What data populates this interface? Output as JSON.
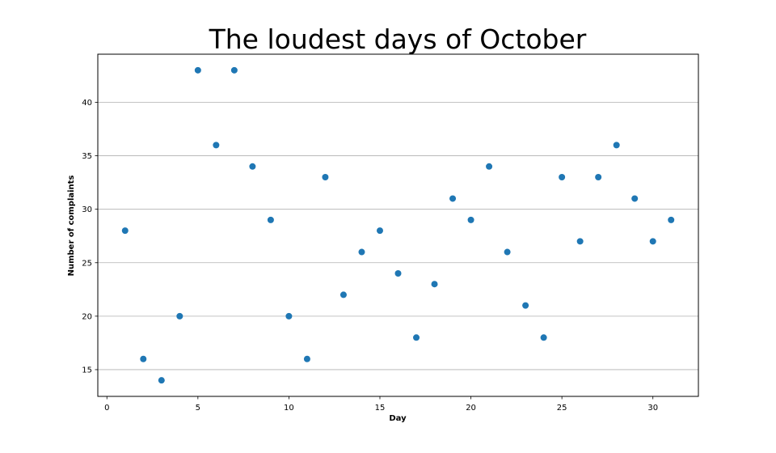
{
  "chart_data": {
    "type": "scatter",
    "title": "The loudest days of October",
    "xlabel": "Day",
    "ylabel": "Number of complaints",
    "x": [
      1,
      2,
      3,
      4,
      5,
      6,
      7,
      8,
      9,
      10,
      11,
      12,
      13,
      14,
      15,
      16,
      17,
      18,
      19,
      20,
      21,
      22,
      23,
      24,
      25,
      26,
      27,
      28,
      29,
      30,
      31
    ],
    "y": [
      28,
      16,
      14,
      20,
      43,
      36,
      43,
      34,
      29,
      20,
      16,
      33,
      22,
      26,
      28,
      24,
      18,
      23,
      31,
      29,
      34,
      26,
      21,
      18,
      33,
      27,
      33,
      36,
      31,
      27,
      29
    ],
    "xlim": [
      -0.5,
      32.5
    ],
    "ylim": [
      12.5,
      44.5
    ],
    "xticks": [
      0,
      5,
      10,
      15,
      20,
      25,
      30
    ],
    "yticks": [
      15,
      20,
      25,
      30,
      35,
      40
    ],
    "grid": "horizontal",
    "marker_color": "#1f77b4"
  }
}
